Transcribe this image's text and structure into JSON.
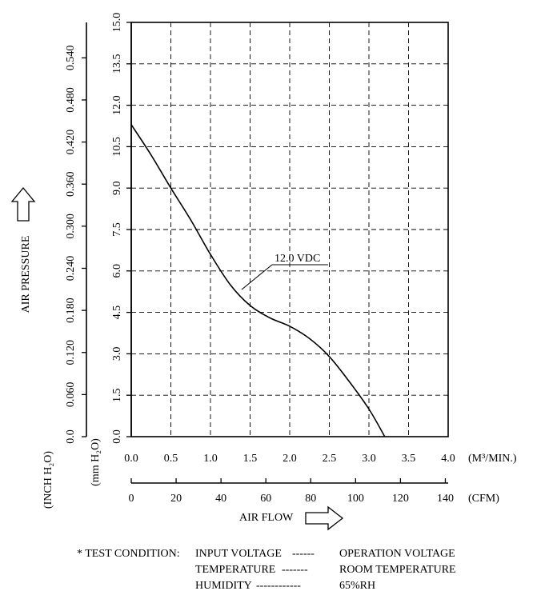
{
  "chart_data": {
    "type": "line",
    "x_unit_primary": "(M³/MIN.)",
    "x_unit_secondary": "(CFM)",
    "y_unit_primary": "(mm H₂O)",
    "y_unit_secondary": "(INCH H₂O)",
    "xlabel": "AIR FLOW",
    "ylabel": "AIR PRESSURE",
    "xlim": [
      0,
      4.0
    ],
    "ylim": [
      0,
      15.0
    ],
    "x_ticks": [
      "0.0",
      "0.5",
      "1.0",
      "1.5",
      "2.0",
      "2.5",
      "3.0",
      "3.5",
      "4.0"
    ],
    "x2_ticks": [
      "0",
      "20",
      "40",
      "60",
      "80",
      "100",
      "120",
      "140"
    ],
    "x2_values": [
      0,
      20,
      40,
      60,
      80,
      100,
      120,
      140
    ],
    "y_ticks": [
      "0.0",
      "1.5",
      "3.0",
      "4.5",
      "6.0",
      "7.5",
      "9.0",
      "10.5",
      "12.0",
      "13.5",
      "15.0"
    ],
    "y2_ticks": [
      "0.0",
      "0.060",
      "0.120",
      "0.180",
      "0.240",
      "0.300",
      "0.360",
      "0.420",
      "0.480",
      "0.540"
    ],
    "y2_values": [
      0,
      0.06,
      0.12,
      0.18,
      0.24,
      0.3,
      0.36,
      0.42,
      0.48,
      0.54
    ],
    "grid": true,
    "series": [
      {
        "name": "12.0 VDC",
        "x": [
          0.0,
          0.25,
          0.5,
          0.75,
          1.0,
          1.25,
          1.5,
          1.75,
          2.0,
          2.25,
          2.5,
          2.75,
          3.0,
          3.2
        ],
        "y": [
          11.3,
          10.2,
          9.0,
          7.85,
          6.6,
          5.5,
          4.75,
          4.3,
          4.0,
          3.55,
          2.9,
          2.0,
          1.0,
          0.0
        ]
      }
    ],
    "annotation": "12.0 VDC"
  },
  "test_condition": {
    "title": "* TEST CONDITION:",
    "rows": [
      {
        "label": "INPUT VOLTAGE",
        "dashes": "------",
        "value": "OPERATION VOLTAGE"
      },
      {
        "label": "TEMPERATURE",
        "dashes": "-------",
        "value": "ROOM TEMPERATURE"
      },
      {
        "label": "HUMIDITY",
        "dashes": "------------",
        "value": "65%RH"
      }
    ]
  }
}
